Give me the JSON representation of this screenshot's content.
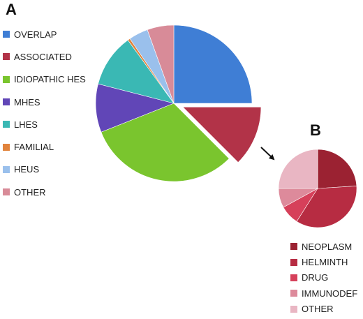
{
  "chart_data": [
    {
      "type": "pie",
      "panel_label": "A",
      "start_angle_deg": 0,
      "direction": "clockwise",
      "exploded_slice": "ASSOCIATED",
      "legend_position": "left",
      "slices": [
        {
          "label": "OVERLAP",
          "value": 25.0,
          "color": "#3f7ed5"
        },
        {
          "label": "ASSOCIATED",
          "value": 12.5,
          "color": "#b23348"
        },
        {
          "label": "IDIOPATHIC HES",
          "value": 31.5,
          "color": "#7ac52e"
        },
        {
          "label": "MHES",
          "value": 10.0,
          "color": "#6146b7"
        },
        {
          "label": "LHES",
          "value": 11.0,
          "color": "#3ab8b4"
        },
        {
          "label": "FAMILIAL",
          "value": 0.5,
          "color": "#e1833c"
        },
        {
          "label": "HEUS",
          "value": 4.0,
          "color": "#9ac0ec"
        },
        {
          "label": "OTHER",
          "value": 5.5,
          "color": "#d88b98"
        }
      ]
    },
    {
      "type": "pie",
      "panel_label": "B",
      "start_angle_deg": 0,
      "direction": "clockwise",
      "legend_position": "below",
      "slices": [
        {
          "label": "NEOPLASM",
          "value": 24,
          "color": "#9b2232"
        },
        {
          "label": "HELMINTH",
          "value": 35,
          "color": "#b72c42"
        },
        {
          "label": "DRUG",
          "value": 8,
          "color": "#d6405a"
        },
        {
          "label": "IMMUNODEF",
          "value": 8,
          "color": "#dd8a9b"
        },
        {
          "label": "OTHER",
          "value": 25,
          "color": "#e9b6c3"
        }
      ]
    }
  ]
}
